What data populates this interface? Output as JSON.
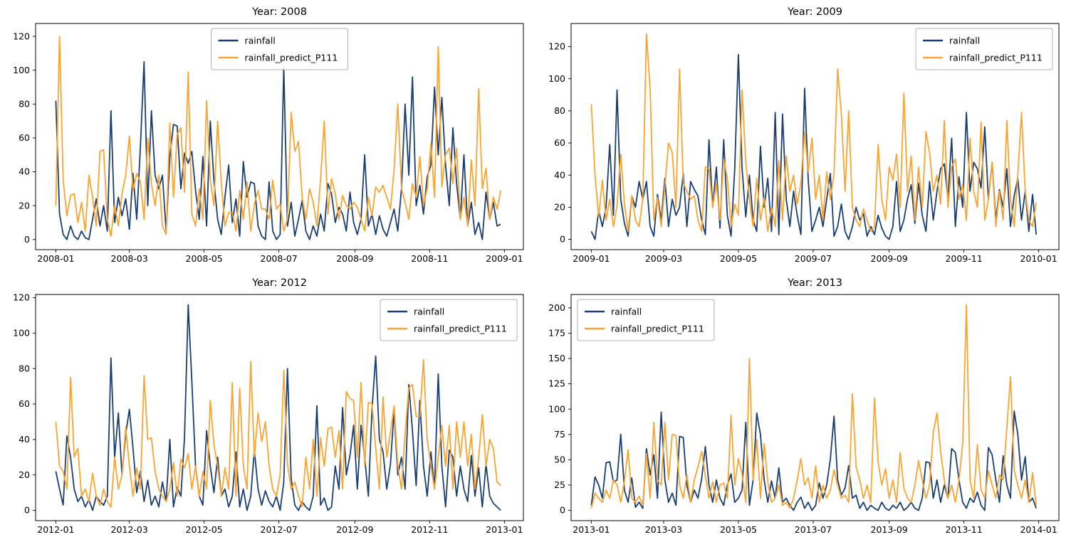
{
  "figure": {
    "background": "#ffffff",
    "text_color": "#000000",
    "spine_color": "#000000",
    "legend_border_color": "#b0b0b0",
    "legend_background": "#ffffff"
  },
  "chart_data": [
    {
      "type": "line",
      "title": "Year: 2008",
      "xlabel": "",
      "ylabel": "",
      "grid": false,
      "x_tick_labels": [
        "2008-01",
        "2008-03",
        "2008-05",
        "2008-07",
        "2008-09",
        "2008-11",
        "2009-01"
      ],
      "x_tick_days": [
        0,
        60,
        121,
        182,
        244,
        305,
        366
      ],
      "y_ticks": [
        0,
        20,
        40,
        60,
        80,
        100,
        120
      ],
      "ylim": [
        -6,
        127.6
      ],
      "xlim_days": [
        -16.5,
        381.5
      ],
      "sample_interval_days": 3,
      "legend": {
        "loc": "upper center",
        "entries": [
          "rainfall",
          "rainfall_predict_P111"
        ]
      },
      "series": [
        {
          "name": "rainfall",
          "color": "#1a3e72",
          "values": [
            82,
            15,
            3,
            0,
            8,
            2,
            0,
            5,
            1,
            0,
            12,
            24,
            8,
            20,
            5,
            76,
            10,
            25,
            14,
            24,
            6,
            39,
            12,
            55,
            105,
            20,
            76,
            38,
            30,
            38,
            5,
            49,
            68,
            67,
            30,
            51,
            45,
            52,
            29,
            12,
            49,
            8,
            70,
            35,
            12,
            3,
            25,
            44,
            10,
            24,
            2,
            46,
            25,
            34,
            33,
            8,
            2,
            0,
            34,
            5,
            0,
            3,
            102,
            8,
            22,
            2,
            12,
            23,
            5,
            0,
            8,
            2,
            15,
            5,
            33,
            27,
            10,
            19,
            15,
            5,
            28,
            10,
            3,
            12,
            50,
            8,
            15,
            3,
            14,
            6,
            2,
            10,
            18,
            5,
            30,
            80,
            38,
            96,
            20,
            32,
            15,
            37,
            44,
            90,
            50,
            84,
            44,
            20,
            66,
            33,
            12,
            50,
            8,
            22,
            3,
            10,
            0,
            28,
            12,
            22,
            8,
            9
          ]
        },
        {
          "name": "rainfall_predict_P111",
          "color": "#fca430",
          "values": [
            20,
            120,
            35,
            14,
            26,
            27,
            10,
            22,
            5,
            38,
            25,
            8,
            52,
            53,
            12,
            2,
            20,
            8,
            27,
            38,
            61,
            29,
            39,
            34,
            12,
            60,
            33,
            20,
            38,
            8,
            3,
            69,
            25,
            62,
            66,
            28,
            99,
            15,
            8,
            30,
            12,
            82,
            35,
            20,
            70,
            34,
            8,
            16,
            16,
            5,
            29,
            12,
            34,
            5,
            21,
            29,
            18,
            18,
            12,
            35,
            18,
            21,
            5,
            12,
            75,
            52,
            58,
            25,
            12,
            30,
            22,
            8,
            36,
            70,
            15,
            36,
            27,
            12,
            26,
            20,
            18,
            22,
            19,
            12,
            5,
            25,
            14,
            31,
            28,
            32,
            25,
            18,
            41,
            80,
            30,
            22,
            12,
            33,
            25,
            49,
            20,
            30,
            57,
            25,
            114,
            31,
            50,
            54,
            33,
            54,
            12,
            25,
            8,
            47,
            20,
            89,
            30,
            42,
            12,
            25,
            18,
            29
          ]
        }
      ]
    },
    {
      "type": "line",
      "title": "Year: 2009",
      "xlabel": "",
      "ylabel": "",
      "grid": false,
      "x_tick_labels": [
        "2009-01",
        "2009-03",
        "2009-05",
        "2009-07",
        "2009-09",
        "2009-11",
        "2010-01"
      ],
      "x_tick_days": [
        0,
        59,
        120,
        181,
        243,
        304,
        365
      ],
      "y_ticks": [
        0,
        20,
        40,
        60,
        80,
        100,
        120
      ],
      "ylim": [
        -6.4,
        134.4
      ],
      "xlim_days": [
        -16.5,
        381.5
      ],
      "sample_interval_days": 3,
      "legend": {
        "loc": "upper right",
        "entries": [
          "rainfall",
          "rainfall_predict_P111"
        ]
      },
      "series": [
        {
          "name": "rainfall",
          "color": "#1a3e72",
          "values": [
            5,
            0,
            18,
            8,
            20,
            59,
            15,
            93,
            25,
            10,
            2,
            27,
            20,
            36,
            25,
            36,
            8,
            2,
            28,
            12,
            38,
            8,
            25,
            15,
            20,
            41,
            8,
            36,
            31,
            27,
            12,
            3,
            62,
            20,
            45,
            7,
            62,
            15,
            2,
            44,
            115,
            44,
            14,
            40,
            12,
            5,
            58,
            20,
            38,
            5,
            79,
            3,
            78,
            25,
            8,
            30,
            15,
            3,
            94,
            37,
            5,
            12,
            20,
            8,
            25,
            41,
            2,
            8,
            22,
            5,
            0,
            8,
            20,
            12,
            16,
            2,
            8,
            3,
            15,
            7,
            2,
            0,
            8,
            36,
            5,
            12,
            25,
            34,
            10,
            35,
            15,
            5,
            36,
            12,
            30,
            44,
            47,
            25,
            63,
            8,
            39,
            20,
            79,
            30,
            48,
            44,
            32,
            70,
            25,
            48,
            12,
            31,
            20,
            44,
            8,
            27,
            38,
            12,
            30,
            5,
            28,
            3
          ]
        },
        {
          "name": "rainfall_predict_P111",
          "color": "#fca430",
          "values": [
            84,
            40,
            14,
            37,
            12,
            25,
            8,
            21,
            53,
            22,
            5,
            27,
            12,
            8,
            25,
            128,
            93,
            12,
            26,
            8,
            33,
            60,
            54,
            20,
            106,
            35,
            30,
            25,
            27,
            12,
            5,
            45,
            44,
            20,
            35,
            12,
            50,
            38,
            8,
            22,
            15,
            93,
            48,
            25,
            8,
            38,
            12,
            26,
            5,
            20,
            8,
            49,
            12,
            52,
            30,
            40,
            22,
            35,
            67,
            42,
            63,
            25,
            40,
            12,
            42,
            25,
            41,
            106,
            78,
            30,
            80,
            20,
            12,
            8,
            19,
            12,
            5,
            8,
            59,
            25,
            12,
            45,
            37,
            53,
            20,
            91,
            30,
            52,
            12,
            45,
            20,
            67,
            54,
            30,
            40,
            22,
            74,
            20,
            45,
            50,
            25,
            34,
            12,
            63,
            30,
            20,
            73,
            12,
            25,
            48,
            8,
            30,
            12,
            74,
            25,
            8,
            40,
            79,
            30,
            12,
            8,
            23
          ]
        }
      ]
    },
    {
      "type": "line",
      "title": "Year: 2012",
      "xlabel": "",
      "ylabel": "",
      "grid": false,
      "x_tick_labels": [
        "2012-01",
        "2012-03",
        "2012-05",
        "2012-07",
        "2012-09",
        "2012-11",
        "2013-01"
      ],
      "x_tick_days": [
        0,
        60,
        121,
        182,
        244,
        305,
        366
      ],
      "y_ticks": [
        0,
        20,
        40,
        60,
        80,
        100,
        120
      ],
      "ylim": [
        -5.8,
        121.8
      ],
      "xlim_days": [
        -16.5,
        381.5
      ],
      "sample_interval_days": 3,
      "legend": {
        "loc": "upper right",
        "entries": [
          "rainfall",
          "rainfall_predict_P111"
        ]
      },
      "series": [
        {
          "name": "rainfall",
          "color": "#1a3e72",
          "values": [
            22,
            12,
            3,
            42,
            30,
            12,
            5,
            8,
            2,
            6,
            0,
            8,
            5,
            3,
            8,
            86,
            30,
            55,
            20,
            43,
            57,
            35,
            10,
            22,
            5,
            17,
            3,
            8,
            2,
            16,
            5,
            40,
            2,
            13,
            8,
            41,
            116,
            73,
            25,
            8,
            3,
            45,
            25,
            10,
            30,
            8,
            12,
            2,
            8,
            33,
            2,
            12,
            0,
            8,
            34,
            12,
            3,
            11,
            5,
            2,
            8,
            0,
            16,
            80,
            18,
            3,
            0,
            5,
            2,
            0,
            8,
            59,
            3,
            7,
            0,
            2,
            25,
            12,
            58,
            20,
            31,
            48,
            12,
            48,
            30,
            8,
            57,
            87,
            40,
            33,
            12,
            26,
            56,
            20,
            30,
            12,
            71,
            45,
            14,
            62,
            25,
            8,
            33,
            12,
            77,
            25,
            2,
            34,
            30,
            8,
            25,
            12,
            5,
            31,
            8,
            24,
            2,
            26,
            8,
            4,
            2,
            0
          ]
        },
        {
          "name": "rainfall_predict_P111",
          "color": "#fca430",
          "values": [
            50,
            25,
            22,
            12,
            75,
            30,
            35,
            8,
            12,
            5,
            21,
            8,
            3,
            12,
            5,
            2,
            30,
            12,
            20,
            47,
            25,
            8,
            24,
            12,
            76,
            40,
            41,
            22,
            12,
            8,
            5,
            12,
            27,
            8,
            29,
            24,
            32,
            12,
            25,
            8,
            22,
            12,
            62,
            37,
            25,
            8,
            24,
            12,
            72,
            8,
            69,
            25,
            12,
            84,
            30,
            55,
            39,
            50,
            25,
            12,
            8,
            20,
            79,
            26,
            12,
            16,
            8,
            2,
            30,
            12,
            40,
            8,
            41,
            25,
            46,
            47,
            30,
            45,
            12,
            67,
            63,
            62,
            30,
            72,
            25,
            61,
            60,
            35,
            12,
            64,
            30,
            44,
            59,
            25,
            12,
            44,
            69,
            71,
            53,
            53,
            85,
            40,
            25,
            12,
            30,
            48,
            25,
            48,
            12,
            50,
            30,
            50,
            25,
            43,
            12,
            30,
            54,
            25,
            40,
            35,
            16,
            14
          ]
        }
      ]
    },
    {
      "type": "line",
      "title": "Year: 2013",
      "xlabel": "",
      "ylabel": "",
      "grid": false,
      "x_tick_labels": [
        "2013-01",
        "2013-03",
        "2013-05",
        "2013-07",
        "2013-09",
        "2013-11",
        "2014-01"
      ],
      "x_tick_days": [
        0,
        59,
        120,
        181,
        243,
        304,
        365
      ],
      "y_ticks": [
        0,
        25,
        50,
        75,
        100,
        125,
        150,
        175,
        200
      ],
      "ylim": [
        -10.2,
        213.2
      ],
      "xlim_days": [
        -16.5,
        381.5
      ],
      "sample_interval_days": 3,
      "legend": {
        "loc": "upper left",
        "entries": [
          "rainfall",
          "rainfall_predict_P111"
        ]
      },
      "series": [
        {
          "name": "rainfall",
          "color": "#1a3e72",
          "values": [
            5,
            33,
            25,
            12,
            47,
            48,
            28,
            30,
            75,
            20,
            8,
            32,
            3,
            8,
            2,
            61,
            35,
            55,
            12,
            97,
            30,
            8,
            17,
            5,
            73,
            72,
            25,
            8,
            20,
            12,
            31,
            63,
            25,
            8,
            30,
            12,
            5,
            25,
            36,
            8,
            12,
            20,
            87,
            5,
            30,
            96,
            75,
            30,
            8,
            29,
            12,
            42,
            8,
            12,
            5,
            0,
            8,
            13,
            2,
            8,
            0,
            5,
            27,
            12,
            25,
            50,
            93,
            30,
            15,
            22,
            44,
            12,
            15,
            2,
            8,
            0,
            5,
            2,
            0,
            8,
            2,
            0,
            5,
            2,
            8,
            0,
            3,
            8,
            2,
            0,
            12,
            48,
            47,
            12,
            30,
            8,
            25,
            12,
            61,
            57,
            30,
            8,
            2,
            12,
            8,
            18,
            5,
            0,
            62,
            55,
            30,
            8,
            54,
            25,
            12,
            98,
            75,
            30,
            53,
            8,
            12,
            2
          ]
        },
        {
          "name": "rainfall_predict_P111",
          "color": "#fca430",
          "values": [
            2,
            17,
            12,
            8,
            20,
            12,
            30,
            25,
            8,
            29,
            60,
            12,
            8,
            14,
            5,
            56,
            12,
            87,
            30,
            25,
            87,
            30,
            75,
            74,
            25,
            12,
            35,
            8,
            30,
            43,
            58,
            34,
            12,
            28,
            8,
            25,
            27,
            12,
            94,
            25,
            51,
            36,
            8,
            150,
            30,
            70,
            12,
            66,
            28,
            8,
            12,
            25,
            5,
            8,
            2,
            12,
            30,
            51,
            25,
            32,
            12,
            44,
            8,
            25,
            12,
            20,
            40,
            25,
            12,
            15,
            8,
            115,
            43,
            30,
            12,
            25,
            8,
            111,
            48,
            25,
            41,
            12,
            30,
            8,
            57,
            22,
            12,
            8,
            25,
            49,
            30,
            12,
            25,
            77,
            96,
            58,
            30,
            12,
            25,
            8,
            30,
            66,
            203,
            30,
            12,
            65,
            20,
            12,
            39,
            25,
            12,
            35,
            30,
            82,
            132,
            40,
            25,
            12,
            30,
            8,
            37,
            5
          ]
        }
      ]
    }
  ]
}
